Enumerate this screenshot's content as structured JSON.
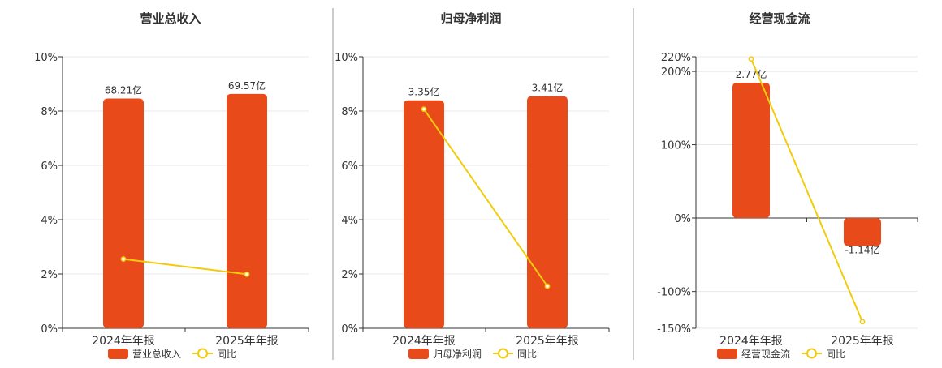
{
  "colors": {
    "bar": "#e84a1a",
    "yoy_line": "#f2cc0c",
    "grid": "#e8e8e8",
    "axis": "#333333",
    "divider": "#999999",
    "text": "#333333"
  },
  "legend": {
    "yoy_label": "同比",
    "bar_icon": "rounded-rect-icon",
    "yoy_icon": "line-circle-icon"
  },
  "chart_data": [
    {
      "type": "bar",
      "title": "营业总收入",
      "categories": [
        "2024年年报",
        "2025年年报"
      ],
      "series": [
        {
          "name": "营业总收入",
          "kind": "bar",
          "values": [
            68.21,
            69.57
          ],
          "labels": [
            "68.21亿",
            "69.57亿"
          ],
          "unit": "亿"
        },
        {
          "name": "同比",
          "kind": "line",
          "values": [
            2.55,
            1.99
          ],
          "unit": "%"
        }
      ],
      "yoy_axis": {
        "ticks": [
          "0%",
          "2%",
          "4%",
          "6%",
          "8%",
          "10%"
        ],
        "ylim": [
          0,
          10
        ]
      },
      "bar_scale_max": 80.6,
      "grid": true,
      "legend_position": "bottom"
    },
    {
      "type": "bar",
      "title": "归母净利润",
      "categories": [
        "2024年年报",
        "2025年年报"
      ],
      "series": [
        {
          "name": "归母净利润",
          "kind": "bar",
          "values": [
            3.35,
            3.41
          ],
          "labels": [
            "3.35亿",
            "3.41亿"
          ],
          "unit": "亿"
        },
        {
          "name": "同比",
          "kind": "line",
          "values": [
            8.07,
            1.55
          ],
          "unit": "%"
        }
      ],
      "yoy_axis": {
        "ticks": [
          "0%",
          "2%",
          "4%",
          "6%",
          "8%",
          "10%"
        ],
        "ylim": [
          0,
          10
        ]
      },
      "bar_scale_max": 3.99,
      "grid": true,
      "legend_position": "bottom"
    },
    {
      "type": "bar",
      "title": "经营现金流",
      "categories": [
        "2024年年报",
        "2025年年报"
      ],
      "series": [
        {
          "name": "经营现金流",
          "kind": "bar",
          "values": [
            2.77,
            -1.14
          ],
          "labels": [
            "2.77亿",
            "-1.14亿"
          ],
          "unit": "亿"
        },
        {
          "name": "同比",
          "kind": "line",
          "values": [
            217,
            -141
          ],
          "unit": "%"
        }
      ],
      "yoy_axis": {
        "ticks": [
          "-150%",
          "-100%",
          "0%",
          "100%",
          "200%",
          "220%"
        ],
        "ylim": [
          -150,
          220
        ]
      },
      "bar_scale": [
        -4.5,
        3.3
      ],
      "grid": true,
      "legend_position": "bottom"
    }
  ]
}
